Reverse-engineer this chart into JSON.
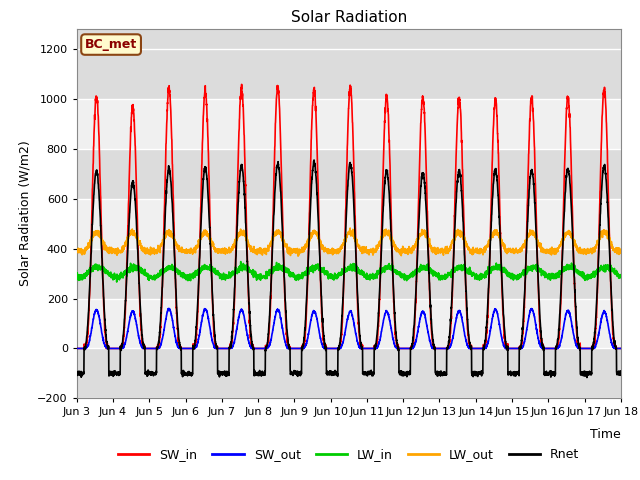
{
  "title": "Solar Radiation",
  "xlabel": "Time",
  "ylabel": "Solar Radiation (W/m2)",
  "ylim": [
    -200,
    1280
  ],
  "yticks": [
    -200,
    0,
    200,
    400,
    600,
    800,
    1000,
    1200
  ],
  "label_text": "BC_met",
  "line_colors": {
    "SW_in": "#FF0000",
    "SW_out": "#0000FF",
    "LW_in": "#00CC00",
    "LW_out": "#FFA500",
    "Rnet": "#000000"
  },
  "legend_labels": [
    "SW_in",
    "SW_out",
    "LW_in",
    "LW_out",
    "Rnet"
  ],
  "n_days": 15,
  "background_color": "#FFFFFF",
  "plot_bg_color": "#DCDCDC",
  "band_color_light": "#F0F0F0",
  "band_color_dark": "#DCDCDC",
  "grid_color": "#FFFFFF",
  "SW_in_peaks": [
    1010,
    970,
    1040,
    1030,
    1040,
    1045,
    1040,
    1045,
    1010,
    1005,
    1000,
    995,
    1000,
    1005,
    1040
  ],
  "SW_out_peaks": [
    155,
    148,
    158,
    158,
    155,
    155,
    150,
    148,
    148,
    148,
    150,
    155,
    158,
    152,
    148
  ],
  "LW_in_base": 305,
  "LW_in_amplitude": 20,
  "LW_out_base": 390,
  "LW_out_day_add": 75,
  "Rnet_peaks": [
    710,
    665,
    720,
    725,
    730,
    740,
    745,
    740,
    710,
    705,
    710,
    715,
    715,
    720,
    730
  ],
  "Rnet_night": -100,
  "sunrise": 4.8,
  "sunset": 21.2,
  "peak_hour": 12.5,
  "line_width": 1.2
}
